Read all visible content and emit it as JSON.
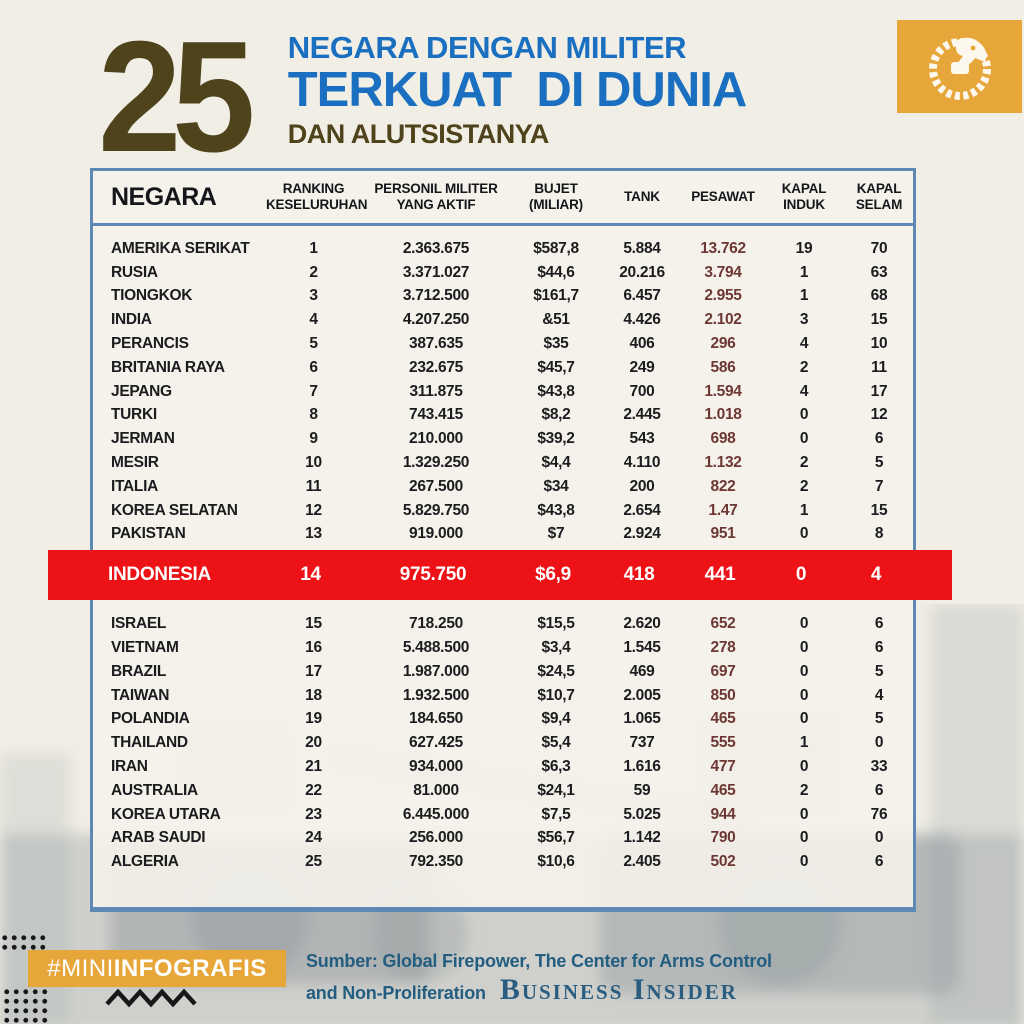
{
  "title": {
    "number": "25",
    "line1": "NEGARA DENGAN MILITER",
    "line2": "TERKUAT  DI DUNIA",
    "line3": "DAN ALUTSISTANYA"
  },
  "logo": {
    "name": "garuda-emblem"
  },
  "table": {
    "headers": [
      "NEGARA",
      "RANKING\nKESELURUHAN",
      "PERSONIL MILITER\nYANG AKTIF",
      "BUJET\n(MILIAR)",
      "TANK",
      "PESAWAT",
      "KAPAL\nINDUK",
      "KAPAL\nSELAM"
    ]
  },
  "chart_data": {
    "type": "table",
    "title": "25 Negara dengan Militer Terkuat di Dunia dan Alutsistanya",
    "columns": [
      "NEGARA",
      "RANKING KESELURUHAN",
      "PERSONIL MILITER YANG AKTIF",
      "BUJET (MILIAR)",
      "TANK",
      "PESAWAT",
      "KAPAL INDUK",
      "KAPAL SELAM"
    ],
    "highlighted_row": "INDONESIA",
    "rows": [
      [
        "AMERIKA SERIKAT",
        "1",
        "2.363.675",
        "$587,8",
        "5.884",
        "13.762",
        "19",
        "70"
      ],
      [
        "RUSIA",
        "2",
        "3.371.027",
        "$44,6",
        "20.216",
        "3.794",
        "1",
        "63"
      ],
      [
        "TIONGKOK",
        "3",
        "3.712.500",
        "$161,7",
        "6.457",
        "2.955",
        "1",
        "68"
      ],
      [
        "INDIA",
        "4",
        "4.207.250",
        "&51",
        "4.426",
        "2.102",
        "3",
        "15"
      ],
      [
        "PERANCIS",
        "5",
        "387.635",
        "$35",
        "406",
        "296",
        "4",
        "10"
      ],
      [
        "BRITANIA RAYA",
        "6",
        "232.675",
        "$45,7",
        "249",
        "586",
        "2",
        "11"
      ],
      [
        "JEPANG",
        "7",
        "311.875",
        "$43,8",
        "700",
        "1.594",
        "4",
        "17"
      ],
      [
        "TURKI",
        "8",
        "743.415",
        "$8,2",
        "2.445",
        "1.018",
        "0",
        "12"
      ],
      [
        "JERMAN",
        "9",
        "210.000",
        "$39,2",
        "543",
        "698",
        "0",
        "6"
      ],
      [
        "MESIR",
        "10",
        "1.329.250",
        "$4,4",
        "4.110",
        "1.132",
        "2",
        "5"
      ],
      [
        "ITALIA",
        "11",
        "267.500",
        "$34",
        "200",
        "822",
        "2",
        "7"
      ],
      [
        "KOREA SELATAN",
        "12",
        "5.829.750",
        "$43,8",
        "2.654",
        "1.47",
        "1",
        "15"
      ],
      [
        "PAKISTAN",
        "13",
        "919.000",
        "$7",
        "2.924",
        "951",
        "0",
        "8"
      ],
      [
        "INDONESIA",
        "14",
        "975.750",
        "$6,9",
        "418",
        "441",
        "0",
        "4"
      ],
      [
        "ISRAEL",
        "15",
        "718.250",
        "$15,5",
        "2.620",
        "652",
        "0",
        "6"
      ],
      [
        "VIETNAM",
        "16",
        "5.488.500",
        "$3,4",
        "1.545",
        "278",
        "0",
        "6"
      ],
      [
        "BRAZIL",
        "17",
        "1.987.000",
        "$24,5",
        "469",
        "697",
        "0",
        "5"
      ],
      [
        "TAIWAN",
        "18",
        "1.932.500",
        "$10,7",
        "2.005",
        "850",
        "0",
        "4"
      ],
      [
        "POLANDIA",
        "19",
        "184.650",
        "$9,4",
        "1.065",
        "465",
        "0",
        "5"
      ],
      [
        "THAILAND",
        "20",
        "627.425",
        "$5,4",
        "737",
        "555",
        "1",
        "0"
      ],
      [
        "IRAN",
        "21",
        "934.000",
        "$6,3",
        "1.616",
        "477",
        "0",
        "33"
      ],
      [
        "AUSTRALIA",
        "22",
        "81.000",
        "$24,1",
        "59",
        "465",
        "2",
        "6"
      ],
      [
        "KOREA UTARA",
        "23",
        "6.445.000",
        "$7,5",
        "5.025",
        "944",
        "0",
        "76"
      ],
      [
        "ARAB SAUDI",
        "24",
        "256.000",
        "$56,7",
        "1.142",
        "790",
        "0",
        "0"
      ],
      [
        "ALGERIA",
        "25",
        "792.350",
        "$10,6",
        "2.405",
        "502",
        "0",
        "6"
      ]
    ]
  },
  "footer": {
    "hashtag_prefix": "#MINI",
    "hashtag_suffix": "INFOGRAFIS",
    "source_line1": "Sumber: Global Firepower, The Center for Arms Control",
    "source_line2": "and Non-Proliferation",
    "brand": "Business Insider"
  },
  "colors": {
    "accent_blue": "#1a6fc0",
    "olive_brown": "#4f431c",
    "highlight_red": "#ec1216",
    "gold": "#e7a63a",
    "table_border_blue": "#5d89b4",
    "aircraft_column_maroon": "#6d3733",
    "source_text_blue": "#235d80",
    "background": "#f1eee6"
  }
}
